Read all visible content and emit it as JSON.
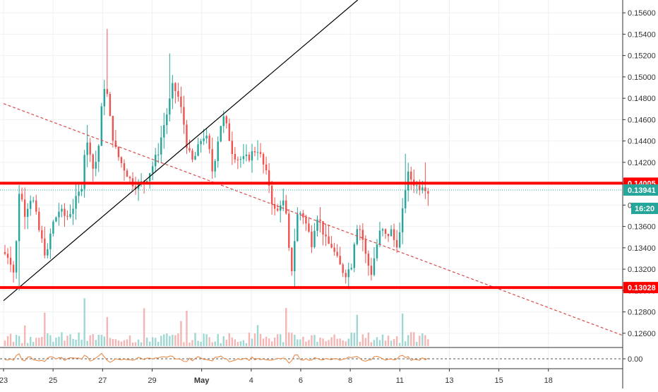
{
  "chart_data": {
    "type": "candlestick",
    "title": "",
    "xlabel": "",
    "ylabel": "",
    "ylim": [
      0.1248,
      0.1572
    ],
    "x_tick_labels": [
      "23",
      "25",
      "27",
      "29",
      "May",
      "4",
      "6",
      "8",
      "11",
      "13",
      "15",
      "18"
    ],
    "y_tick_labels": [
      "0.12600",
      "0.12800",
      "0.13000",
      "0.13200",
      "0.13400",
      "0.13600",
      "0.13800",
      "0.14000",
      "0.14200",
      "0.14400",
      "0.14600",
      "0.14800",
      "0.15000",
      "0.15200",
      "0.15400",
      "0.15600"
    ],
    "x_ticks_at": [
      0,
      2,
      4,
      6,
      8,
      10,
      12,
      14,
      16,
      18,
      20,
      22
    ],
    "y_ticks": [
      0.126,
      0.128,
      0.13,
      0.132,
      0.134,
      0.136,
      0.138,
      0.14,
      0.142,
      0.144,
      0.146,
      0.148,
      0.15,
      0.152,
      0.154,
      0.156
    ],
    "x_range": [
      0,
      25
    ],
    "price_path": [
      [
        0.0,
        0.1336
      ],
      [
        0.3,
        0.1332
      ],
      [
        0.5,
        0.1314
      ],
      [
        0.7,
        0.1398
      ],
      [
        0.9,
        0.1372
      ],
      [
        1.2,
        0.139
      ],
      [
        1.5,
        0.1355
      ],
      [
        1.8,
        0.133
      ],
      [
        2.0,
        0.136
      ],
      [
        2.3,
        0.1375
      ],
      [
        2.6,
        0.1368
      ],
      [
        2.9,
        0.138
      ],
      [
        3.2,
        0.1396
      ],
      [
        3.3,
        0.1428
      ],
      [
        3.5,
        0.144
      ],
      [
        3.7,
        0.141
      ],
      [
        3.9,
        0.1436
      ],
      [
        4.1,
        0.1494
      ],
      [
        4.25,
        0.1482
      ],
      [
        4.4,
        0.1452
      ],
      [
        4.6,
        0.143
      ],
      [
        4.8,
        0.142
      ],
      [
        5.0,
        0.1412
      ],
      [
        5.2,
        0.1402
      ],
      [
        5.5,
        0.1398
      ],
      [
        5.8,
        0.1404
      ],
      [
        6.1,
        0.1418
      ],
      [
        6.3,
        0.143
      ],
      [
        6.5,
        0.1452
      ],
      [
        6.7,
        0.147
      ],
      [
        6.9,
        0.1492
      ],
      [
        7.1,
        0.1482
      ],
      [
        7.3,
        0.1462
      ],
      [
        7.5,
        0.143
      ],
      [
        7.7,
        0.142
      ],
      [
        7.9,
        0.1432
      ],
      [
        8.1,
        0.1446
      ],
      [
        8.3,
        0.144
      ],
      [
        8.5,
        0.141
      ],
      [
        8.7,
        0.144
      ],
      [
        8.9,
        0.1464
      ],
      [
        9.1,
        0.145
      ],
      [
        9.3,
        0.143
      ],
      [
        9.5,
        0.1424
      ],
      [
        9.8,
        0.1422
      ],
      [
        10.0,
        0.1426
      ],
      [
        10.3,
        0.1434
      ],
      [
        10.5,
        0.1421
      ],
      [
        10.8,
        0.1398
      ],
      [
        10.95,
        0.1376
      ],
      [
        11.1,
        0.1372
      ],
      [
        11.3,
        0.1388
      ],
      [
        11.5,
        0.1365
      ],
      [
        11.6,
        0.133
      ],
      [
        11.7,
        0.132
      ],
      [
        11.9,
        0.137
      ],
      [
        12.1,
        0.1374
      ],
      [
        12.3,
        0.136
      ],
      [
        12.5,
        0.1345
      ],
      [
        12.7,
        0.1372
      ],
      [
        12.9,
        0.136
      ],
      [
        13.1,
        0.1344
      ],
      [
        13.3,
        0.1342
      ],
      [
        13.5,
        0.133
      ],
      [
        13.7,
        0.132
      ],
      [
        13.9,
        0.1316
      ],
      [
        14.1,
        0.1324
      ],
      [
        14.3,
        0.1362
      ],
      [
        14.5,
        0.1356
      ],
      [
        14.7,
        0.133
      ],
      [
        14.9,
        0.1316
      ],
      [
        15.1,
        0.134
      ],
      [
        15.3,
        0.1358
      ],
      [
        15.5,
        0.135
      ],
      [
        15.7,
        0.1356
      ],
      [
        15.9,
        0.1342
      ],
      [
        16.1,
        0.1356
      ],
      [
        16.25,
        0.1393
      ],
      [
        16.4,
        0.1408
      ],
      [
        16.6,
        0.1402
      ],
      [
        16.8,
        0.1396
      ],
      [
        17.0,
        0.1401
      ],
      [
        17.2,
        0.1393
      ]
    ],
    "volume_pattern": "recent daily bars",
    "horizontal_levels": [
      {
        "value": 0.14005,
        "label": "0.14005",
        "color": "#ff0000"
      },
      {
        "value": 0.13028,
        "label": "0.13028",
        "color": "#ff0000"
      }
    ],
    "current_price": {
      "value": 0.13941,
      "label": "0.13941",
      "countdown": "16:20",
      "color": "#26a69a"
    },
    "trendlines": [
      {
        "style": "solid",
        "color": "#000000",
        "from": [
          0,
          0.12905
        ],
        "to": [
          14.3,
          0.1572
        ]
      },
      {
        "style": "dashed",
        "color": "#d84a4a",
        "from": [
          0,
          0.1475
        ],
        "to": [
          25,
          0.1258
        ]
      }
    ],
    "oscillator": {
      "zero_label": "0.00",
      "line_color": "#e8823a"
    },
    "colors": {
      "up": "#26a69a",
      "down": "#ef5350",
      "up_volume": "#9fd8d3",
      "down_volume": "#f4b6b4",
      "grid": "#eef0f3",
      "axis_text": "#333333"
    }
  }
}
